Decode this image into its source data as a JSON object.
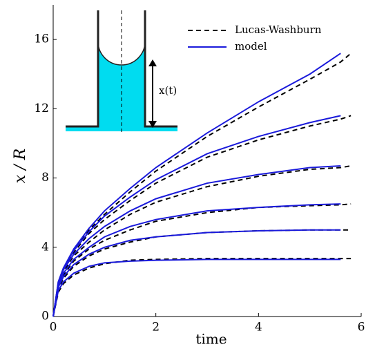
{
  "chart_data": {
    "type": "line",
    "xlabel": "time",
    "ylabel": "x / R",
    "annotations": [
      "x(t)"
    ],
    "x": [
      0,
      0.1,
      0.2,
      0.4,
      0.7,
      1,
      1.5,
      2,
      3,
      4,
      5,
      5.6,
      5.8
    ],
    "series": [
      {
        "name": "Lucas-Washburn",
        "color": "#000000",
        "dashed": true,
        "curves": [
          [
            0,
            1.4,
            1.9,
            2.4,
            2.8,
            3.05,
            3.25,
            3.3,
            3.35,
            3.35,
            3.35,
            3.35,
            3.35
          ],
          [
            0,
            1.6,
            2.2,
            2.9,
            3.5,
            3.9,
            4.3,
            4.6,
            4.85,
            4.95,
            5.0,
            5.0,
            5.0
          ],
          [
            0,
            1.7,
            2.4,
            3.2,
            3.9,
            4.4,
            5.0,
            5.5,
            6.0,
            6.3,
            6.4,
            6.45,
            6.5
          ],
          [
            0,
            1.8,
            2.6,
            3.5,
            4.3,
            5.0,
            5.9,
            6.6,
            7.5,
            8.1,
            8.5,
            8.6,
            8.7
          ],
          [
            0,
            1.9,
            2.7,
            3.7,
            4.8,
            5.6,
            6.7,
            7.7,
            9.2,
            10.2,
            11.0,
            11.4,
            11.6
          ],
          [
            0,
            1.9,
            2.7,
            3.8,
            5.0,
            5.9,
            7.2,
            8.4,
            10.4,
            12.1,
            13.7,
            14.7,
            15.2
          ]
        ]
      },
      {
        "name": "model",
        "color": "#1a1adb",
        "dashed": false,
        "curves": [
          [
            0,
            1.5,
            2.0,
            2.5,
            2.9,
            3.1,
            3.2,
            3.25,
            3.3,
            3.3,
            3.3,
            3.3,
            null
          ],
          [
            0,
            1.7,
            2.3,
            3.0,
            3.6,
            4.0,
            4.4,
            4.6,
            4.85,
            4.95,
            5.0,
            5.0,
            null
          ],
          [
            0,
            1.8,
            2.5,
            3.3,
            4.0,
            4.6,
            5.2,
            5.6,
            6.1,
            6.3,
            6.45,
            6.5,
            null
          ],
          [
            0,
            1.9,
            2.7,
            3.6,
            4.5,
            5.2,
            6.1,
            6.8,
            7.7,
            8.2,
            8.6,
            8.7,
            null
          ],
          [
            0,
            2.0,
            2.8,
            3.8,
            4.9,
            5.8,
            6.9,
            7.9,
            9.4,
            10.4,
            11.2,
            11.6,
            null
          ],
          [
            0,
            2.0,
            2.8,
            3.9,
            5.1,
            6.1,
            7.4,
            8.6,
            10.6,
            12.4,
            14.0,
            15.2,
            null
          ]
        ]
      }
    ],
    "xlim": [
      0,
      6
    ],
    "xticks": [
      0,
      2,
      4,
      6
    ],
    "ylim": [
      0,
      18
    ],
    "yticks": [
      0,
      4,
      8,
      12,
      16
    ],
    "grid": false,
    "legend": "top-right"
  }
}
